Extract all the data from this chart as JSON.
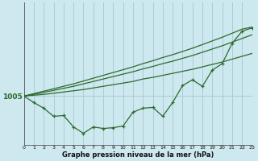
{
  "xlabel": "Graphe pression niveau de la mer (hPa)",
  "background_color": "#cde8ee",
  "grid_color": "#aacdd6",
  "line_color": "#2d6a2d",
  "hours": [
    0,
    1,
    2,
    3,
    4,
    5,
    6,
    7,
    8,
    9,
    10,
    11,
    12,
    13,
    14,
    15,
    16,
    17,
    18,
    19,
    20,
    21,
    22,
    23
  ],
  "pressure_actual": [
    1005.0,
    1004.2,
    1003.5,
    1002.5,
    1002.6,
    1001.2,
    1000.4,
    1001.2,
    1001.0,
    1001.1,
    1001.3,
    1003.0,
    1003.5,
    1003.6,
    1002.5,
    1004.2,
    1006.3,
    1007.0,
    1006.2,
    1008.2,
    1009.0,
    1011.5,
    1013.0,
    1013.4
  ],
  "pressure_line1": [
    1005.0,
    1005.1,
    1005.2,
    1005.35,
    1005.5,
    1005.65,
    1005.8,
    1006.0,
    1006.2,
    1006.4,
    1006.6,
    1006.8,
    1007.1,
    1007.3,
    1007.55,
    1007.8,
    1008.05,
    1008.3,
    1008.6,
    1008.9,
    1009.2,
    1009.55,
    1009.9,
    1010.25
  ],
  "pressure_line2": [
    1005.0,
    1005.2,
    1005.45,
    1005.7,
    1005.95,
    1006.2,
    1006.5,
    1006.8,
    1007.1,
    1007.4,
    1007.7,
    1008.0,
    1008.35,
    1008.65,
    1009.0,
    1009.3,
    1009.65,
    1010.0,
    1010.4,
    1010.8,
    1011.2,
    1011.65,
    1012.1,
    1012.55
  ],
  "pressure_line3": [
    1005.0,
    1005.3,
    1005.6,
    1005.9,
    1006.2,
    1006.5,
    1006.85,
    1007.2,
    1007.55,
    1007.9,
    1008.25,
    1008.6,
    1009.0,
    1009.35,
    1009.75,
    1010.1,
    1010.5,
    1010.9,
    1011.35,
    1011.8,
    1012.25,
    1012.75,
    1013.25,
    1013.5
  ],
  "ytick_value": 1005,
  "ytick_label": "1005",
  "ylim_min": 999.0,
  "ylim_max": 1016.5,
  "xlim_min": 0,
  "xlim_max": 23
}
